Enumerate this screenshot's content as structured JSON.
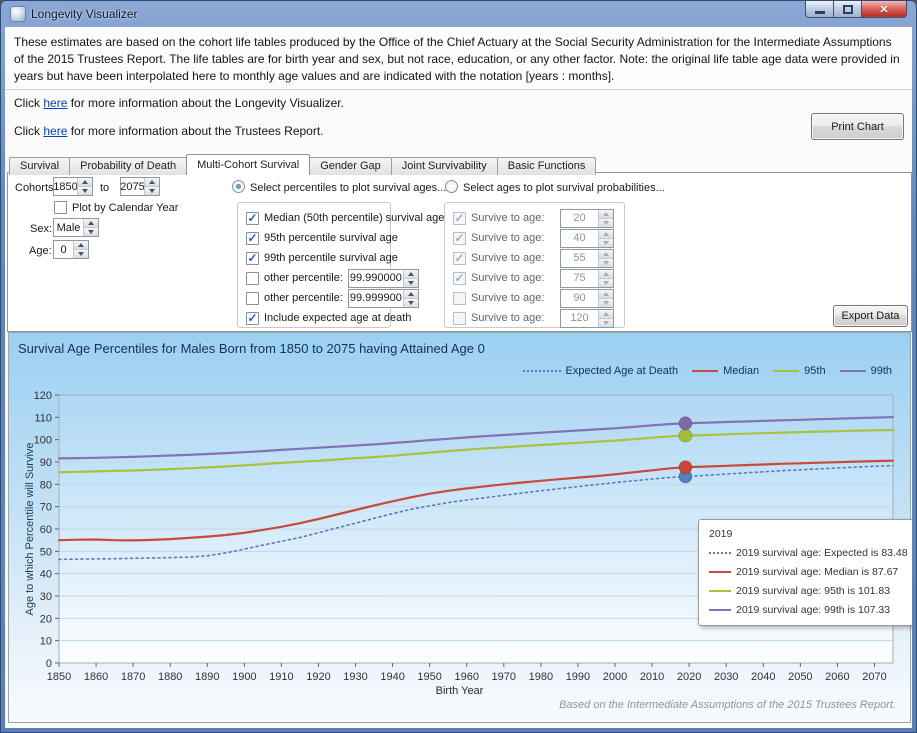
{
  "window": {
    "title": "Longevity Visualizer"
  },
  "icons": {
    "check": "✓",
    "close": "✕"
  },
  "info": {
    "paragraph": "These estimates are based on the cohort life tables produced by the Office of the Chief Actuary at the Social Security Administration for the Intermediate Assumptions of the 2015 Trustees Report. The life tables are for birth year and sex, but not race, education, or any other factor. Note: the original life table age data were provided in years but have been interpolated here to monthly age values and are indicated with the notation [years : months]."
  },
  "links": [
    {
      "prefix": "Click ",
      "link": "here",
      "suffix": " for more information about the Longevity Visualizer."
    },
    {
      "prefix": "Click ",
      "link": "here",
      "suffix": " for more information about the Trustees Report."
    }
  ],
  "buttons": {
    "print_chart": "Print Chart",
    "export_data": "Export Data"
  },
  "tabs": {
    "items": [
      "Survival",
      "Probability of Death",
      "Multi-Cohort Survival",
      "Gender Gap",
      "Joint Survivability",
      "Basic Functions"
    ],
    "active_index": 2
  },
  "controls": {
    "cohorts_label": "Cohorts:",
    "cohort_from": "1850",
    "to_label": "to",
    "cohort_to": "2075",
    "plot_by_calendar_year_label": "Plot by Calendar Year",
    "plot_by_calendar_year_checked": false,
    "sex_label": "Sex:",
    "sex_value": "Male",
    "age_label": "Age:",
    "age_value": "0"
  },
  "percentiles_group": {
    "radio_label": "Select percentiles to plot survival ages...",
    "selected": true,
    "items": [
      {
        "label": "Median (50th percentile) survival age",
        "checked": true
      },
      {
        "label": "95th percentile survival age",
        "checked": true
      },
      {
        "label": "99th percentile survival age",
        "checked": true
      },
      {
        "label": "other percentile:",
        "checked": false,
        "value": "99.990000"
      },
      {
        "label": "other percentile:",
        "checked": false,
        "value": "99.999900"
      },
      {
        "label": "Include expected age at death",
        "checked": true
      }
    ]
  },
  "ages_group": {
    "radio_label": "Select ages to plot survival probabilities...",
    "selected": false,
    "disabled": true,
    "items": [
      {
        "label": "Survive to age:",
        "checked": true,
        "value": "20"
      },
      {
        "label": "Survive to age:",
        "checked": true,
        "value": "40"
      },
      {
        "label": "Survive to age:",
        "checked": true,
        "value": "55"
      },
      {
        "label": "Survive to age:",
        "checked": true,
        "value": "75"
      },
      {
        "label": "Survive to age:",
        "checked": false,
        "value": "90"
      },
      {
        "label": "Survive to age:",
        "checked": false,
        "value": "120"
      }
    ]
  },
  "chart_data": {
    "type": "line",
    "title": "Survival Age Percentiles for Males Born from 1850 to 2075 having Attained Age 0",
    "xlabel": "Birth Year",
    "ylabel": "Age to which Percentile will Survive",
    "footnote": "Based on the Intermediate Assumptions of the 2015 Trustees Report.",
    "xlim": [
      1850,
      2075
    ],
    "ylim": [
      0,
      120
    ],
    "x_tick_step": 10,
    "y_tick_step": 10,
    "grid": true,
    "legend_position": "top-right",
    "x": [
      1850,
      1855,
      1860,
      1865,
      1870,
      1875,
      1880,
      1885,
      1890,
      1895,
      1900,
      1905,
      1910,
      1915,
      1920,
      1925,
      1930,
      1935,
      1940,
      1945,
      1950,
      1955,
      1960,
      1965,
      1970,
      1975,
      1980,
      1985,
      1990,
      1995,
      2000,
      2005,
      2010,
      2015,
      2019,
      2025,
      2030,
      2035,
      2040,
      2045,
      2050,
      2055,
      2060,
      2065,
      2070,
      2075
    ],
    "series": [
      {
        "name": "Expected Age at Death",
        "color": "#5b78c2",
        "style": "dotted",
        "values": [
          46.4,
          46.5,
          46.6,
          46.7,
          46.9,
          47.0,
          47.2,
          47.4,
          48.0,
          49.3,
          51.0,
          52.8,
          54.5,
          56.2,
          58.3,
          60.5,
          62.6,
          64.8,
          66.9,
          68.8,
          70.4,
          71.8,
          73.0,
          74.0,
          75.1,
          76.1,
          77.1,
          78.1,
          79.0,
          79.9,
          80.8,
          81.6,
          82.4,
          83.1,
          83.48,
          84.1,
          84.6,
          85.1,
          85.6,
          86.1,
          86.5,
          86.9,
          87.3,
          87.7,
          88.1,
          88.4
        ]
      },
      {
        "name": "Median",
        "color": "#c74a3d",
        "style": "solid",
        "values": [
          55.0,
          55.2,
          55.3,
          55.0,
          54.9,
          55.1,
          55.5,
          56.0,
          56.6,
          57.3,
          58.3,
          59.6,
          61.0,
          62.6,
          64.5,
          66.5,
          68.5,
          70.5,
          72.4,
          74.2,
          75.8,
          77.1,
          78.2,
          79.1,
          80.0,
          80.8,
          81.6,
          82.3,
          83.0,
          83.7,
          84.5,
          85.4,
          86.3,
          87.2,
          87.67,
          88.0,
          88.3,
          88.6,
          88.9,
          89.2,
          89.4,
          89.7,
          89.9,
          90.2,
          90.4,
          90.6
        ]
      },
      {
        "name": "95th",
        "color": "#aac23b",
        "style": "solid",
        "values": [
          85.4,
          85.6,
          85.8,
          86.0,
          86.2,
          86.5,
          86.8,
          87.2,
          87.6,
          88.0,
          88.5,
          89.0,
          89.6,
          90.1,
          90.6,
          91.1,
          91.7,
          92.2,
          92.8,
          93.5,
          94.2,
          94.9,
          95.5,
          96.1,
          96.6,
          97.1,
          97.6,
          98.1,
          98.6,
          99.1,
          99.6,
          100.2,
          100.9,
          101.5,
          101.83,
          102.1,
          102.4,
          102.65,
          102.9,
          103.15,
          103.4,
          103.6,
          103.8,
          104.0,
          104.2,
          104.35
        ]
      },
      {
        "name": "99th",
        "color": "#8572b2",
        "style": "solid",
        "values": [
          91.6,
          91.75,
          91.9,
          92.1,
          92.3,
          92.6,
          92.9,
          93.2,
          93.6,
          94.0,
          94.4,
          94.9,
          95.4,
          95.9,
          96.4,
          96.9,
          97.4,
          97.9,
          98.5,
          99.1,
          99.8,
          100.4,
          101.0,
          101.6,
          102.1,
          102.6,
          103.1,
          103.6,
          104.1,
          104.6,
          105.1,
          105.7,
          106.4,
          107.0,
          107.33,
          107.65,
          107.9,
          108.15,
          108.4,
          108.65,
          108.9,
          109.15,
          109.4,
          109.65,
          109.9,
          110.1
        ]
      }
    ],
    "markers": {
      "year": 2019,
      "points": [
        {
          "series": "Expected Age at Death",
          "value": 83.48,
          "color": "#4f81bd"
        },
        {
          "series": "Median",
          "value": 87.67,
          "color": "#cc4437"
        },
        {
          "series": "95th",
          "value": 101.83,
          "color": "#a2bc35"
        },
        {
          "series": "99th",
          "value": 107.33,
          "color": "#7b68ad"
        }
      ]
    },
    "tooltip": {
      "title": "2019",
      "rows": [
        {
          "text": "2019 survival age: Expected is 83.48",
          "color": "#5b78c2",
          "style": "dotted"
        },
        {
          "text": "2019 survival age: Median is 87.67",
          "color": "#c74a3d",
          "style": "solid"
        },
        {
          "text": "2019 survival age: 95th is 101.83",
          "color": "#aac23b",
          "style": "solid"
        },
        {
          "text": "2019 survival age: 99th is 107.33",
          "color": "#8572b2",
          "style": "solid"
        }
      ]
    }
  }
}
